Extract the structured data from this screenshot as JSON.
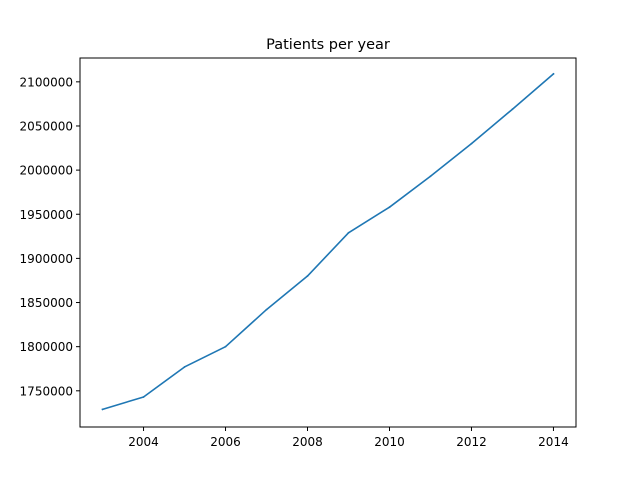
{
  "chart_data": {
    "type": "line",
    "title": "Patients per year",
    "xlabel": "",
    "ylabel": "",
    "xlim": [
      2002.45,
      2014.55
    ],
    "ylim": [
      1709000,
      2127000
    ],
    "x_ticks": [
      2004,
      2006,
      2008,
      2010,
      2012,
      2014
    ],
    "x_tick_labels": [
      "2004",
      "2006",
      "2008",
      "2010",
      "2012",
      "2014"
    ],
    "y_ticks": [
      1750000,
      1800000,
      1850000,
      1900000,
      1950000,
      2000000,
      2050000,
      2100000
    ],
    "y_tick_labels": [
      "1750000",
      "1800000",
      "1850000",
      "1900000",
      "1950000",
      "2000000",
      "2050000",
      "2100000"
    ],
    "grid": false,
    "legend": "none",
    "series": [
      {
        "color": "#1f77b4",
        "x": [
          2003,
          2004,
          2005,
          2006,
          2007,
          2008,
          2009,
          2010,
          2011,
          2012,
          2013,
          2014
        ],
        "values": [
          1729000,
          1743000,
          1777000,
          1800000,
          1842000,
          1880000,
          1929000,
          1958000,
          1993000,
          2030000,
          2069000,
          2109000
        ]
      }
    ]
  }
}
